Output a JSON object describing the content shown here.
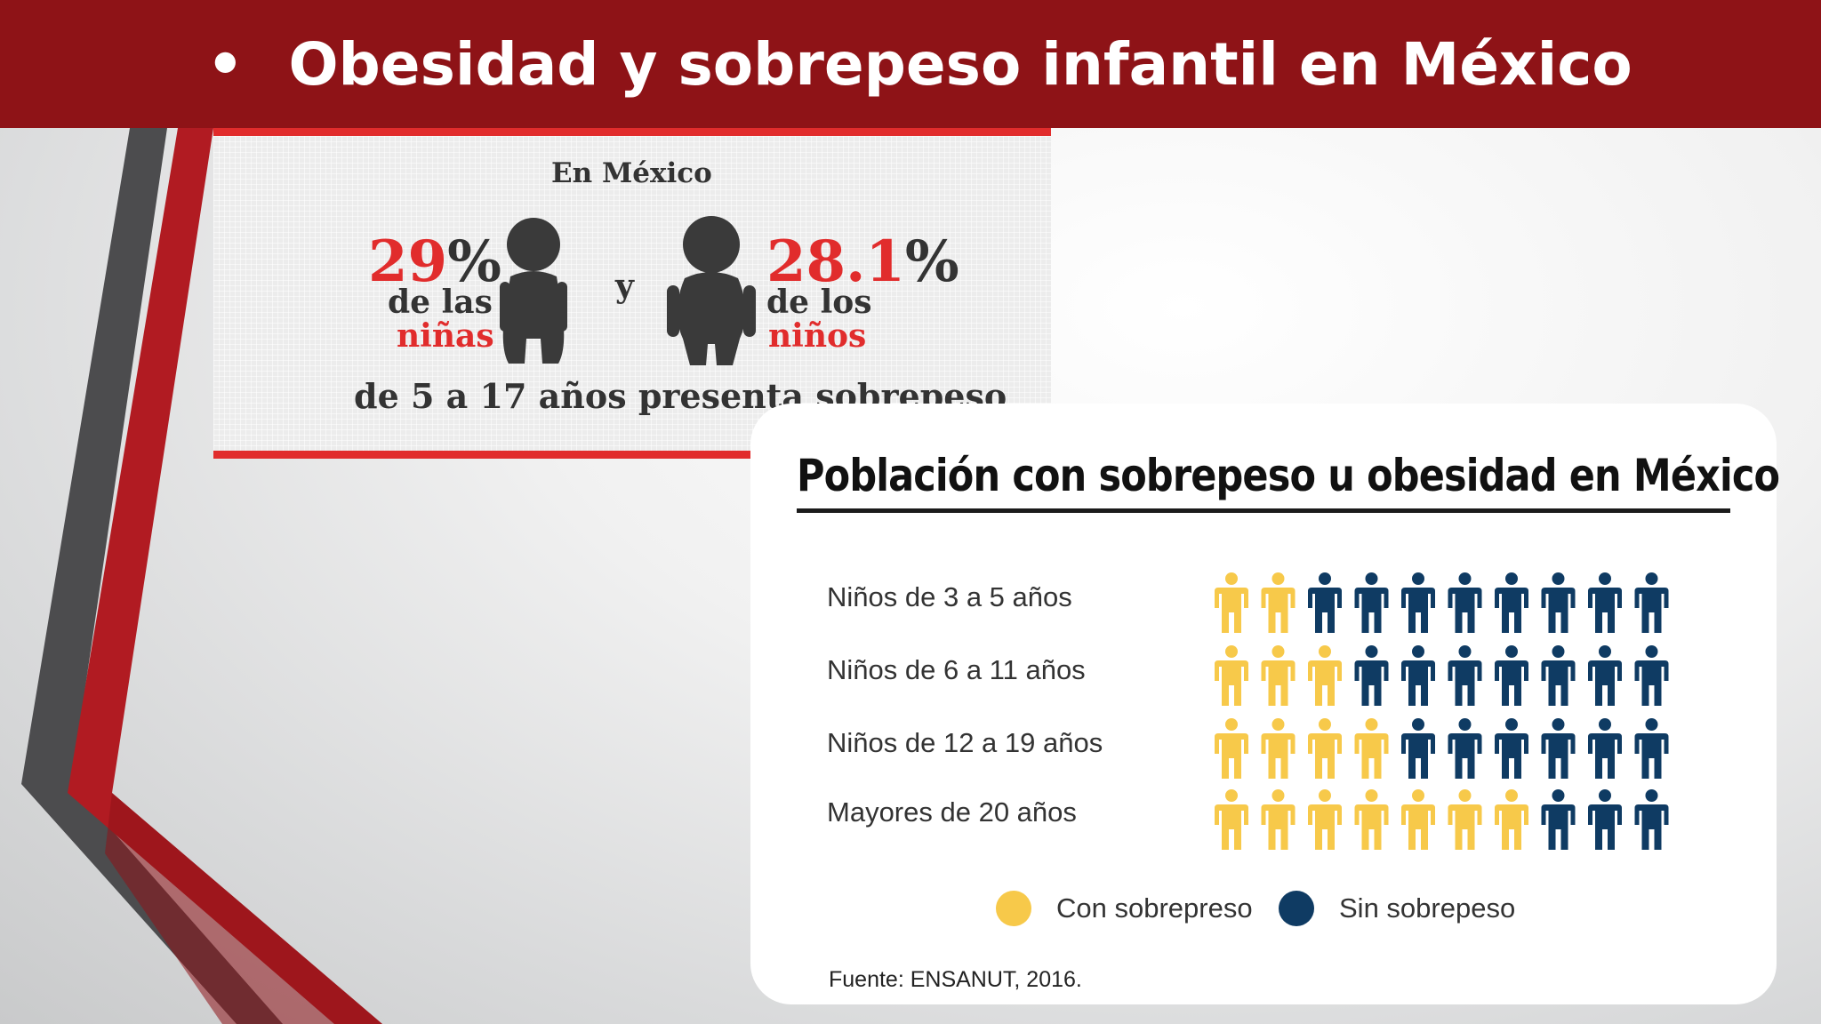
{
  "slide": {
    "bullet": "•",
    "title": "Obesidad y sobrepeso infantil en México"
  },
  "infographic_1": {
    "header": "En México",
    "conjunction": "y",
    "girls": {
      "percent": "29",
      "percent_sign": "%",
      "line1": "de las",
      "line2": "niñas"
    },
    "boys": {
      "percent": "28.1",
      "percent_sign": "%",
      "line1": "de los",
      "line2": "niños"
    },
    "footer": "de 5 a 17 años presenta sobrepeso",
    "colors": {
      "accent": "#e12c2c",
      "figure": "#3a3a3a"
    },
    "icons": [
      "girl-silhouette-icon",
      "boy-silhouette-icon"
    ]
  },
  "infographic_2": {
    "title": "Población con sobrepeso u obesidad en México",
    "rows": [
      {
        "label": "Niños de 3 a 5 años",
        "overweight": 2,
        "total": 10
      },
      {
        "label": "Niños de 6 a 11 años",
        "overweight": 3,
        "total": 10
      },
      {
        "label": "Niños de 12 a 19 años",
        "overweight": 4,
        "total": 10
      },
      {
        "label": "Mayores de 20 años",
        "overweight": 7,
        "total": 10
      }
    ],
    "legend": [
      {
        "label": "Con sobrepreso",
        "color": "#f7c94a"
      },
      {
        "label": "Sin sobrepeso",
        "color": "#0f3b63"
      }
    ],
    "source": "Fuente: ENSANUT, 2016.",
    "icon": "person-icon"
  }
}
